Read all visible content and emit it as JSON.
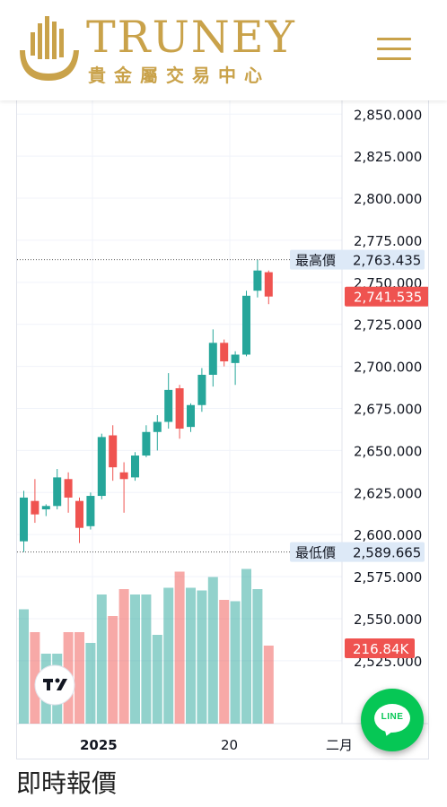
{
  "header": {
    "brand": "TRUNEY",
    "tagline": "貴金屬交易中心",
    "menu_icon": "hamburger-menu-icon"
  },
  "chart_data": {
    "type": "candlestick",
    "y_ticks": [
      "2,850.000",
      "2,825.000",
      "2,800.000",
      "2,775.000",
      "2,750.000",
      "2,725.000",
      "2,700.000",
      "2,675.000",
      "2,650.000",
      "2,625.000",
      "2,600.000",
      "2,575.000",
      "2,550.000",
      "2,525.000"
    ],
    "ylim": [
      2510,
      2856
    ],
    "x_labels": [
      "2025",
      "20",
      "二月"
    ],
    "highest": {
      "label": "最高價",
      "value": "2,763.435",
      "y": 2763.435
    },
    "lowest": {
      "label": "最低價",
      "value": "2,589.665",
      "y": 2589.665
    },
    "last_price": {
      "value": "2,741.535",
      "y": 2741.535
    },
    "volume_label": "216.84K",
    "up_color": "#26a69a",
    "down_color": "#ef5350",
    "candles": [
      {
        "o": 2596,
        "h": 2626,
        "l": 2589.665,
        "c": 2622
      },
      {
        "o": 2620,
        "h": 2633,
        "l": 2607,
        "c": 2612
      },
      {
        "o": 2615,
        "h": 2618,
        "l": 2611,
        "c": 2617
      },
      {
        "o": 2617,
        "h": 2639,
        "l": 2615,
        "c": 2634
      },
      {
        "o": 2633,
        "h": 2637,
        "l": 2613,
        "c": 2622
      },
      {
        "o": 2620,
        "h": 2622,
        "l": 2595,
        "c": 2604
      },
      {
        "o": 2605,
        "h": 2625,
        "l": 2603,
        "c": 2623
      },
      {
        "o": 2623,
        "h": 2660,
        "l": 2621,
        "c": 2658
      },
      {
        "o": 2659,
        "h": 2665,
        "l": 2632,
        "c": 2640
      },
      {
        "o": 2637,
        "h": 2643,
        "l": 2613,
        "c": 2633
      },
      {
        "o": 2634,
        "h": 2649,
        "l": 2632,
        "c": 2647
      },
      {
        "o": 2647,
        "h": 2665,
        "l": 2646,
        "c": 2661
      },
      {
        "o": 2661,
        "h": 2671,
        "l": 2650,
        "c": 2667
      },
      {
        "o": 2667,
        "h": 2696,
        "l": 2663,
        "c": 2686
      },
      {
        "o": 2687,
        "h": 2689,
        "l": 2657,
        "c": 2663
      },
      {
        "o": 2664,
        "h": 2678,
        "l": 2661,
        "c": 2677
      },
      {
        "o": 2677,
        "h": 2699,
        "l": 2673,
        "c": 2695
      },
      {
        "o": 2695,
        "h": 2722,
        "l": 2688,
        "c": 2714
      },
      {
        "o": 2714,
        "h": 2716,
        "l": 2700,
        "c": 2703
      },
      {
        "o": 2702,
        "h": 2709,
        "l": 2689,
        "c": 2707
      },
      {
        "o": 2707,
        "h": 2745,
        "l": 2706,
        "c": 2742
      },
      {
        "o": 2745,
        "h": 2763.435,
        "l": 2741,
        "c": 2757
      },
      {
        "o": 2756,
        "h": 2757,
        "l": 2737,
        "c": 2741.535
      }
    ],
    "volumes": [
      0.85,
      0.68,
      0.52,
      0.52,
      0.68,
      0.68,
      0.6,
      0.96,
      0.8,
      1.0,
      0.96,
      0.96,
      0.66,
      1.01,
      1.13,
      1.01,
      0.99,
      1.09,
      0.92,
      0.91,
      1.15,
      1.0,
      0.58
    ],
    "vol_max": 1.2
  },
  "line_button": {
    "text": "LINE"
  },
  "page_section_title": "即時報價"
}
